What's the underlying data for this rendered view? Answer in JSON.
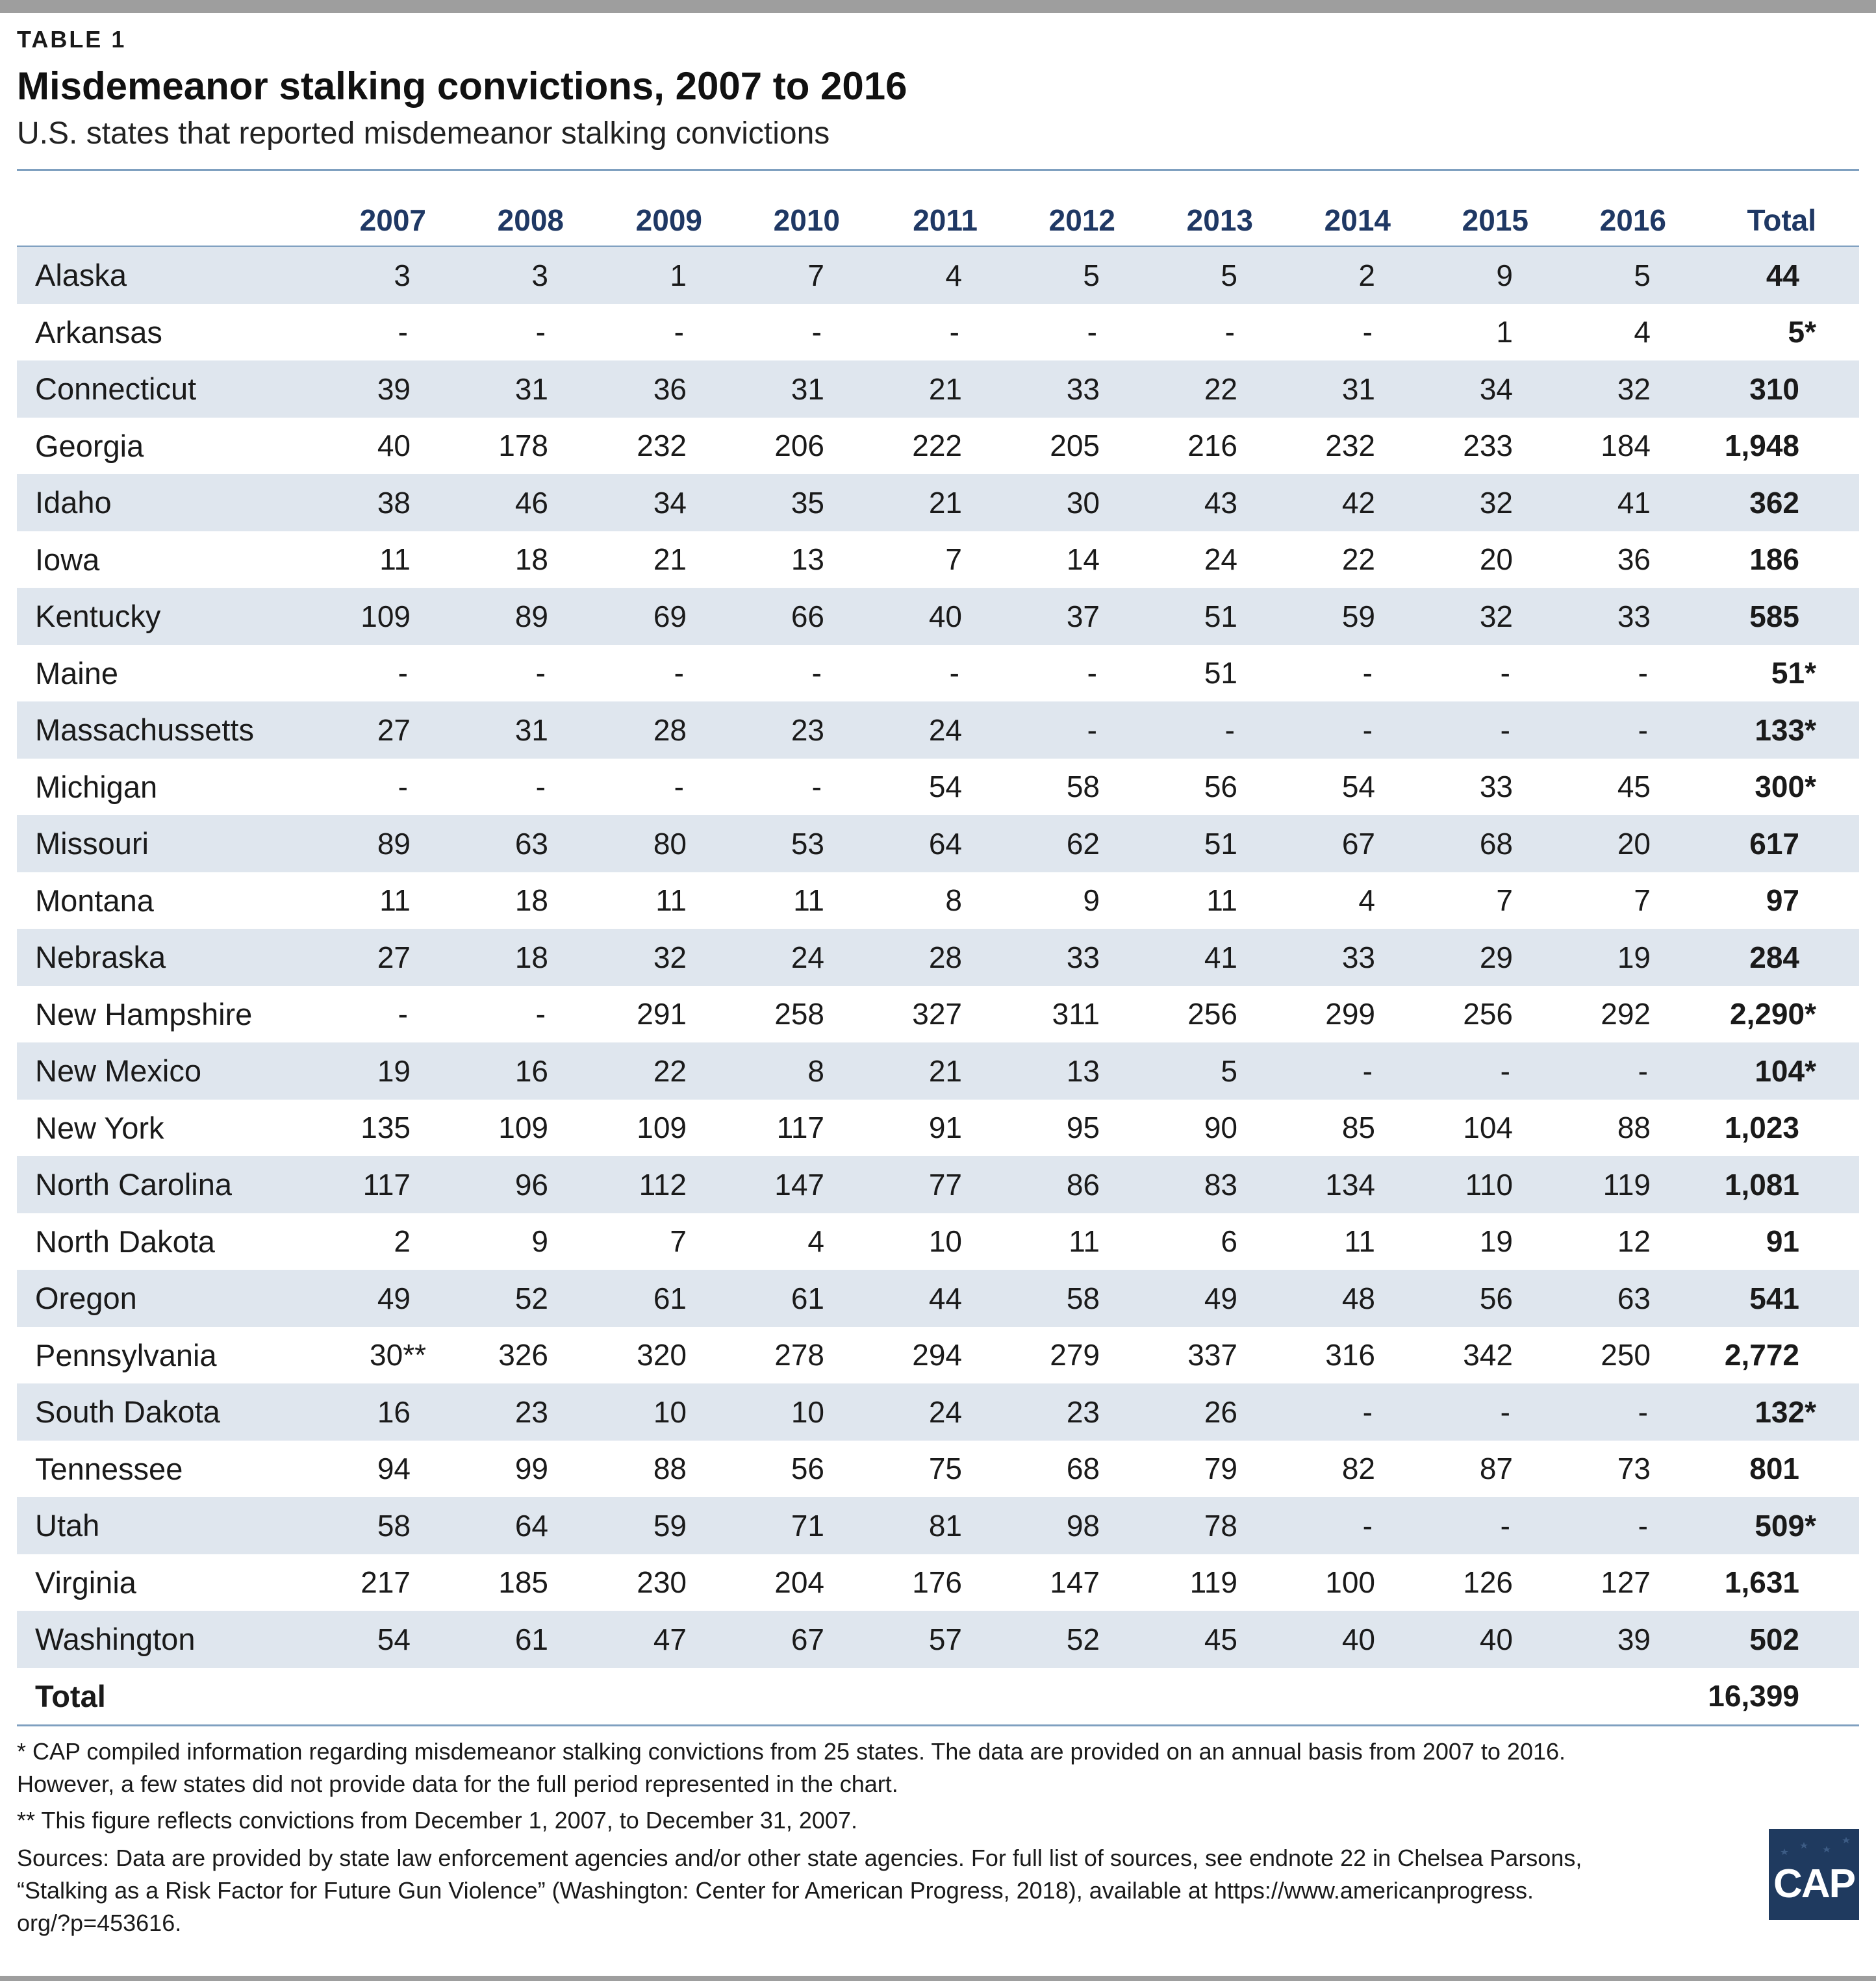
{
  "kicker": "TABLE 1",
  "title": "Misdemeanor stalking convictions, 2007 to 2016",
  "subtitle": "U.S. states that reported misdemeanor stalking convictions",
  "notes": {
    "asterisk_line1": "* CAP compiled information regarding misdemeanor stalking convictions from 25 states. The data are provided on an annual basis from 2007 to 2016.",
    "asterisk_line2": "However, a few states did not provide data for the full period represented in the chart.",
    "double_asterisk": "** This figure reflects convictions from December 1, 2007, to December 31, 2007.",
    "sources_line1": "Sources: Data are provided by state law enforcement agencies and/or other state agencies. For full list of sources, see endnote 22 in Chelsea Parsons,",
    "sources_line2": "“Stalking as a Risk Factor for Future Gun Violence” (Washington: Center for American Progress, 2018), available at https://www.americanprogress.",
    "sources_line3": "org/?p=453616."
  },
  "logo_text": "CAP",
  "colors": {
    "header_text": "#1f3864",
    "row_shade": "#dfe6ee",
    "rule": "#7fa0c0",
    "logo_bg": "#1f3a5f"
  },
  "chart_data": {
    "type": "table",
    "columns": [
      "2007",
      "2008",
      "2009",
      "2010",
      "2011",
      "2012",
      "2013",
      "2014",
      "2015",
      "2016",
      "Total"
    ],
    "rows": [
      {
        "state": "Alaska",
        "values": [
          "3",
          "3",
          "1",
          "7",
          "4",
          "5",
          "5",
          "2",
          "9",
          "5"
        ],
        "total": "44"
      },
      {
        "state": "Arkansas",
        "values": [
          "-",
          "-",
          "-",
          "-",
          "-",
          "-",
          "-",
          "-",
          "1",
          "4"
        ],
        "total": "5*"
      },
      {
        "state": "Connecticut",
        "values": [
          "39",
          "31",
          "36",
          "31",
          "21",
          "33",
          "22",
          "31",
          "34",
          "32"
        ],
        "total": "310"
      },
      {
        "state": "Georgia",
        "values": [
          "40",
          "178",
          "232",
          "206",
          "222",
          "205",
          "216",
          "232",
          "233",
          "184"
        ],
        "total": "1,948"
      },
      {
        "state": "Idaho",
        "values": [
          "38",
          "46",
          "34",
          "35",
          "21",
          "30",
          "43",
          "42",
          "32",
          "41"
        ],
        "total": "362"
      },
      {
        "state": "Iowa",
        "values": [
          "11",
          "18",
          "21",
          "13",
          "7",
          "14",
          "24",
          "22",
          "20",
          "36"
        ],
        "total": "186"
      },
      {
        "state": "Kentucky",
        "values": [
          "109",
          "89",
          "69",
          "66",
          "40",
          "37",
          "51",
          "59",
          "32",
          "33"
        ],
        "total": "585"
      },
      {
        "state": "Maine",
        "values": [
          "-",
          "-",
          "-",
          "-",
          "-",
          "-",
          "51",
          "-",
          "-",
          "-"
        ],
        "total": "51*"
      },
      {
        "state": "Massachussetts",
        "values": [
          "27",
          "31",
          "28",
          "23",
          "24",
          "-",
          "-",
          "-",
          "-",
          "-"
        ],
        "total": "133*"
      },
      {
        "state": "Michigan",
        "values": [
          "-",
          "-",
          "-",
          "-",
          "54",
          "58",
          "56",
          "54",
          "33",
          "45"
        ],
        "total": "300*"
      },
      {
        "state": "Missouri",
        "values": [
          "89",
          "63",
          "80",
          "53",
          "64",
          "62",
          "51",
          "67",
          "68",
          "20"
        ],
        "total": "617"
      },
      {
        "state": "Montana",
        "values": [
          "11",
          "18",
          "11",
          "11",
          "8",
          "9",
          "11",
          "4",
          "7",
          "7"
        ],
        "total": "97"
      },
      {
        "state": "Nebraska",
        "values": [
          "27",
          "18",
          "32",
          "24",
          "28",
          "33",
          "41",
          "33",
          "29",
          "19"
        ],
        "total": "284"
      },
      {
        "state": "New Hampshire",
        "values": [
          "-",
          "-",
          "291",
          "258",
          "327",
          "311",
          "256",
          "299",
          "256",
          "292"
        ],
        "total": "2,290*"
      },
      {
        "state": "New Mexico",
        "values": [
          "19",
          "16",
          "22",
          "8",
          "21",
          "13",
          "5",
          "-",
          "-",
          "-"
        ],
        "total": "104*"
      },
      {
        "state": "New York",
        "values": [
          "135",
          "109",
          "109",
          "117",
          "91",
          "95",
          "90",
          "85",
          "104",
          "88"
        ],
        "total": "1,023"
      },
      {
        "state": "North Carolina",
        "values": [
          "117",
          "96",
          "112",
          "147",
          "77",
          "86",
          "83",
          "134",
          "110",
          "119"
        ],
        "total": "1,081"
      },
      {
        "state": "North Dakota",
        "values": [
          "2",
          "9",
          "7",
          "4",
          "10",
          "11",
          "6",
          "11",
          "19",
          "12"
        ],
        "total": "91"
      },
      {
        "state": "Oregon",
        "values": [
          "49",
          "52",
          "61",
          "61",
          "44",
          "58",
          "49",
          "48",
          "56",
          "63"
        ],
        "total": "541"
      },
      {
        "state": "Pennsylvania",
        "values": [
          "30**",
          "326",
          "320",
          "278",
          "294",
          "279",
          "337",
          "316",
          "342",
          "250"
        ],
        "total": "2,772"
      },
      {
        "state": "South Dakota",
        "values": [
          "16",
          "23",
          "10",
          "10",
          "24",
          "23",
          "26",
          "-",
          "-",
          "-"
        ],
        "total": "132*"
      },
      {
        "state": "Tennessee",
        "values": [
          "94",
          "99",
          "88",
          "56",
          "75",
          "68",
          "79",
          "82",
          "87",
          "73"
        ],
        "total": "801"
      },
      {
        "state": "Utah",
        "values": [
          "58",
          "64",
          "59",
          "71",
          "81",
          "98",
          "78",
          "-",
          "-",
          "-"
        ],
        "total": "509*"
      },
      {
        "state": "Virginia",
        "values": [
          "217",
          "185",
          "230",
          "204",
          "176",
          "147",
          "119",
          "100",
          "126",
          "127"
        ],
        "total": "1,631"
      },
      {
        "state": "Washington",
        "values": [
          "54",
          "61",
          "47",
          "67",
          "57",
          "52",
          "45",
          "40",
          "40",
          "39"
        ],
        "total": "502"
      }
    ],
    "grand_total_label": "Total",
    "grand_total": "16,399"
  }
}
